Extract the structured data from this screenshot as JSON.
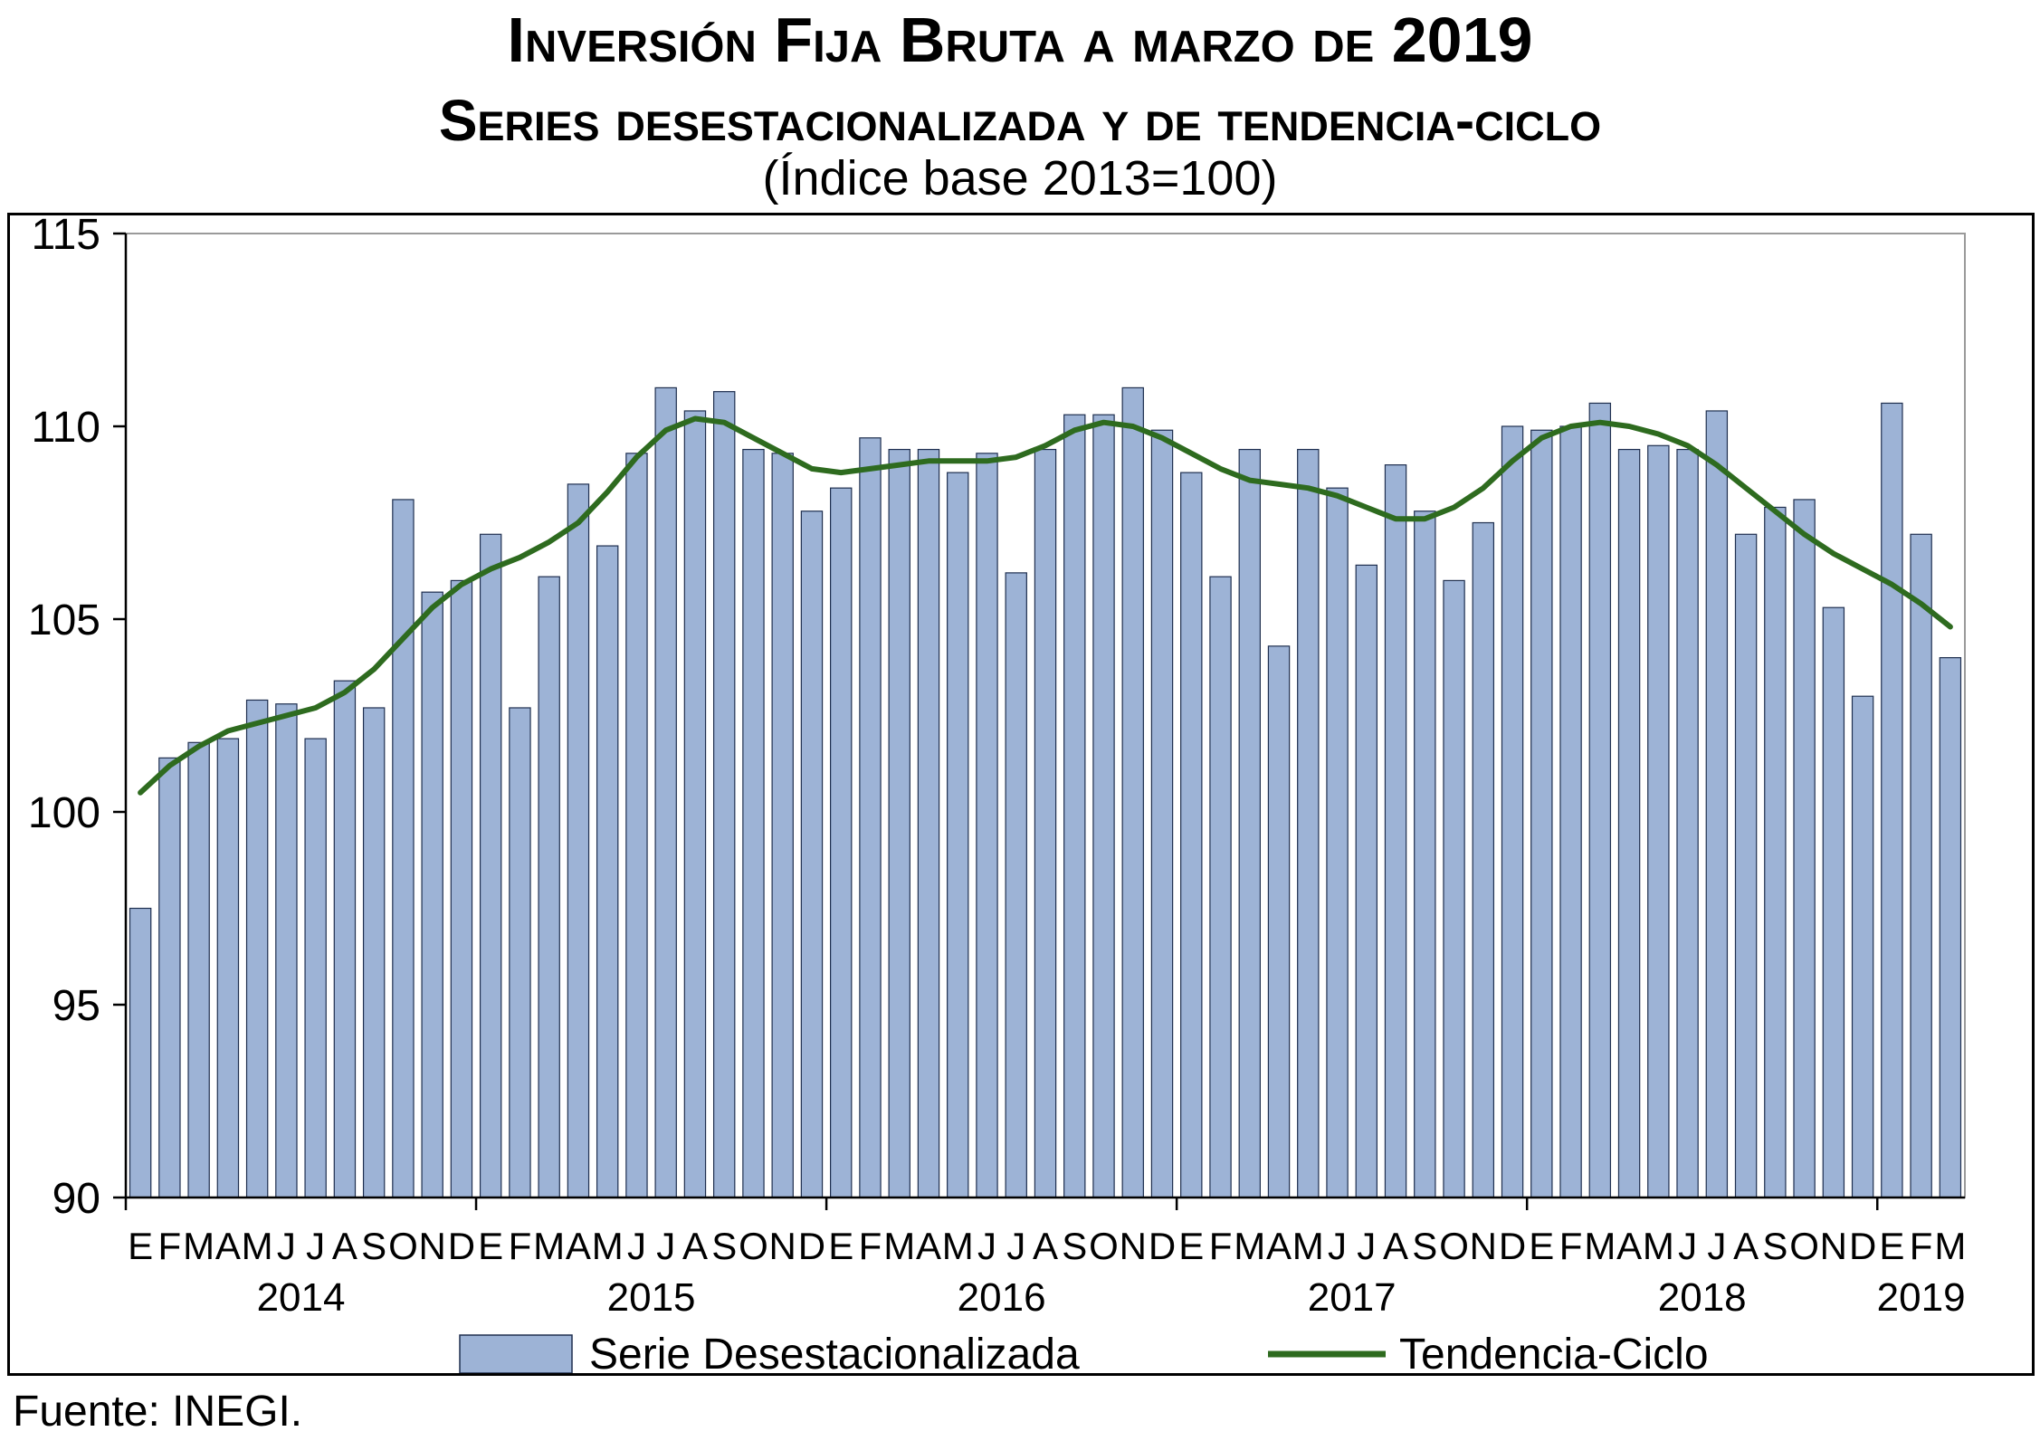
{
  "title": {
    "line1": "Inversión Fija Bruta a marzo de 2019",
    "line2": "Series desestacionalizada y de tendencia-ciclo",
    "subtitle": "(Índice base 2013=100)"
  },
  "source": "Fuente: INEGI.",
  "colors": {
    "bar_fill": "#9db3d6",
    "bar_stroke": "#1f2f4f",
    "line": "#2e6b1f",
    "grid": "#9a9a9a"
  },
  "chart_data": {
    "type": "bar",
    "ylim": [
      90,
      115
    ],
    "yticks": [
      90,
      95,
      100,
      105,
      110,
      115
    ],
    "month_labels": [
      "E",
      "F",
      "M",
      "A",
      "M",
      "J",
      "J",
      "A",
      "S",
      "O",
      "N",
      "D",
      "E",
      "F",
      "M",
      "A",
      "M",
      "J",
      "J",
      "A",
      "S",
      "O",
      "N",
      "D",
      "E",
      "F",
      "M",
      "A",
      "M",
      "J",
      "J",
      "A",
      "S",
      "O",
      "N",
      "D",
      "E",
      "F",
      "M",
      "A",
      "M",
      "J",
      "J",
      "A",
      "S",
      "O",
      "N",
      "D",
      "E",
      "F",
      "M",
      "A",
      "M",
      "J",
      "J",
      "A",
      "S",
      "O",
      "N",
      "D",
      "E",
      "F",
      "M"
    ],
    "years": [
      {
        "label": "2014",
        "start": 0,
        "end": 11
      },
      {
        "label": "2015",
        "start": 12,
        "end": 23
      },
      {
        "label": "2016",
        "start": 24,
        "end": 35
      },
      {
        "label": "2017",
        "start": 36,
        "end": 47
      },
      {
        "label": "2018",
        "start": 48,
        "end": 59
      },
      {
        "label": "2019",
        "start": 60,
        "end": 62
      }
    ],
    "series": [
      {
        "name": "Serie Desestacionalizada",
        "type": "bar",
        "values": [
          97.5,
          101.4,
          101.8,
          101.9,
          102.9,
          102.8,
          101.9,
          103.4,
          102.7,
          108.1,
          105.7,
          106.0,
          107.2,
          102.7,
          106.1,
          108.5,
          106.9,
          109.3,
          111.0,
          110.4,
          110.9,
          109.4,
          109.3,
          107.8,
          108.4,
          109.7,
          109.4,
          109.4,
          108.8,
          109.3,
          106.2,
          109.4,
          110.3,
          110.3,
          111.0,
          109.9,
          108.8,
          106.1,
          109.4,
          104.3,
          109.4,
          108.4,
          106.4,
          109.0,
          107.8,
          106.0,
          107.5,
          110.0,
          109.9,
          110.0,
          110.6,
          109.4,
          109.5,
          109.4,
          110.4,
          107.2,
          107.9,
          108.1,
          105.3,
          103.0,
          110.6,
          107.2,
          104.0
        ]
      },
      {
        "name": "Tendencia-Ciclo",
        "type": "line",
        "values": [
          100.5,
          101.2,
          101.7,
          102.1,
          102.3,
          102.5,
          102.7,
          103.1,
          103.7,
          104.5,
          105.3,
          105.9,
          106.3,
          106.6,
          107.0,
          107.5,
          108.3,
          109.2,
          109.9,
          110.2,
          110.1,
          109.7,
          109.3,
          108.9,
          108.8,
          108.9,
          109.0,
          109.1,
          109.1,
          109.1,
          109.2,
          109.5,
          109.9,
          110.1,
          110.0,
          109.7,
          109.3,
          108.9,
          108.6,
          108.5,
          108.4,
          108.2,
          107.9,
          107.6,
          107.6,
          107.9,
          108.4,
          109.1,
          109.7,
          110.0,
          110.1,
          110.0,
          109.8,
          109.5,
          109.0,
          108.4,
          107.8,
          107.2,
          106.7,
          106.3,
          105.9,
          105.4,
          104.8
        ]
      }
    ]
  }
}
